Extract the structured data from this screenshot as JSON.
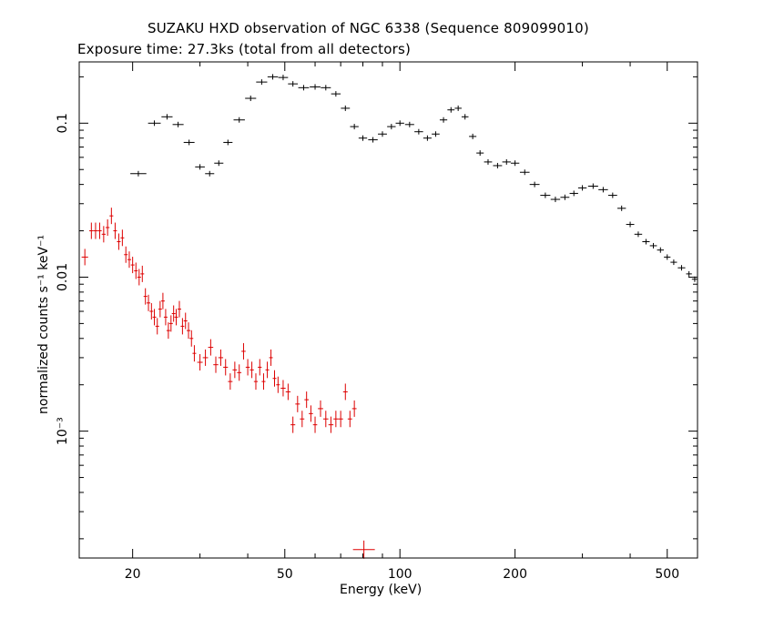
{
  "title": "SUZAKU HXD observation of NGC 6338 (Sequence 809099010)",
  "subtitle": "Exposure time: 27.3ks (total from all detectors)",
  "chart_data": {
    "type": "scatter",
    "xlabel": "Energy (keV)",
    "ylabel": "normalized counts s⁻¹ keV⁻¹",
    "xscale": "log",
    "yscale": "log",
    "xlim": [
      14.5,
      600
    ],
    "ylim": [
      0.00015,
      0.25
    ],
    "x_ticks": [
      {
        "value": 20,
        "label": "20"
      },
      {
        "value": 50,
        "label": "50"
      },
      {
        "value": 100,
        "label": "100"
      },
      {
        "value": 200,
        "label": "200"
      },
      {
        "value": 500,
        "label": "500"
      }
    ],
    "y_ticks": [
      {
        "value": 0.1,
        "label": "0.1"
      },
      {
        "value": 0.01,
        "label": "0.01"
      },
      {
        "value": 0.001,
        "label": "10⁻³"
      }
    ],
    "grid": false,
    "series": [
      {
        "color": "#000000",
        "points": [
          [
            20.7,
            0.047
          ],
          [
            22.8,
            0.1
          ],
          [
            24.6,
            0.11
          ],
          [
            26.3,
            0.098
          ],
          [
            28.1,
            0.075
          ],
          [
            30.0,
            0.052
          ],
          [
            31.8,
            0.047
          ],
          [
            33.6,
            0.055
          ],
          [
            35.5,
            0.075
          ],
          [
            38.0,
            0.105
          ],
          [
            40.7,
            0.145
          ],
          [
            43.5,
            0.185
          ],
          [
            46.5,
            0.2
          ],
          [
            49.5,
            0.198
          ],
          [
            52.5,
            0.18
          ],
          [
            56.0,
            0.17
          ],
          [
            60.0,
            0.172
          ],
          [
            64.0,
            0.17
          ],
          [
            68.0,
            0.155
          ],
          [
            72.0,
            0.125
          ],
          [
            76.0,
            0.095
          ],
          [
            80.0,
            0.08
          ],
          [
            85.0,
            0.078
          ],
          [
            90.0,
            0.085
          ],
          [
            95.0,
            0.095
          ],
          [
            100.0,
            0.1
          ],
          [
            106.0,
            0.098
          ],
          [
            112.0,
            0.088
          ],
          [
            118.0,
            0.08
          ],
          [
            124.0,
            0.085
          ],
          [
            130.0,
            0.105
          ],
          [
            136.0,
            0.122
          ],
          [
            142.0,
            0.125
          ],
          [
            148.0,
            0.11
          ],
          [
            155.0,
            0.082
          ],
          [
            162.0,
            0.064
          ],
          [
            170.0,
            0.056
          ],
          [
            180.0,
            0.053
          ],
          [
            190.0,
            0.056
          ],
          [
            200.0,
            0.055
          ],
          [
            212.0,
            0.048
          ],
          [
            225.0,
            0.04
          ],
          [
            240.0,
            0.034
          ],
          [
            255.0,
            0.032
          ],
          [
            270.0,
            0.033
          ],
          [
            285.0,
            0.035
          ],
          [
            300.0,
            0.038
          ],
          [
            320.0,
            0.039
          ],
          [
            340.0,
            0.037
          ],
          [
            360.0,
            0.034
          ],
          [
            380.0,
            0.028
          ],
          [
            400.0,
            0.022
          ],
          [
            420.0,
            0.019
          ],
          [
            440.0,
            0.017
          ],
          [
            460.0,
            0.016
          ],
          [
            480.0,
            0.015
          ],
          [
            500.0,
            0.0135
          ],
          [
            520.0,
            0.0125
          ],
          [
            545.0,
            0.0115
          ],
          [
            570.0,
            0.0105
          ],
          [
            590.0,
            0.0097
          ]
        ]
      },
      {
        "color": "#dd0000",
        "points": [
          [
            15.0,
            0.0135
          ],
          [
            15.6,
            0.02
          ],
          [
            16.0,
            0.02
          ],
          [
            16.4,
            0.02
          ],
          [
            16.8,
            0.019
          ],
          [
            17.2,
            0.021
          ],
          [
            17.6,
            0.025
          ],
          [
            18.0,
            0.02
          ],
          [
            18.4,
            0.017
          ],
          [
            18.8,
            0.018
          ],
          [
            19.2,
            0.014
          ],
          [
            19.6,
            0.013
          ],
          [
            20.0,
            0.012
          ],
          [
            20.4,
            0.011
          ],
          [
            20.8,
            0.01
          ],
          [
            21.2,
            0.0105
          ],
          [
            21.6,
            0.0075
          ],
          [
            22.0,
            0.0068
          ],
          [
            22.4,
            0.006
          ],
          [
            22.8,
            0.0055
          ],
          [
            23.2,
            0.0048
          ],
          [
            23.6,
            0.0062
          ],
          [
            24.0,
            0.007
          ],
          [
            24.4,
            0.0055
          ],
          [
            24.8,
            0.0045
          ],
          [
            25.2,
            0.005
          ],
          [
            25.6,
            0.0058
          ],
          [
            26.0,
            0.0055
          ],
          [
            26.5,
            0.0062
          ],
          [
            27.0,
            0.0048
          ],
          [
            27.5,
            0.0052
          ],
          [
            28.0,
            0.0045
          ],
          [
            28.5,
            0.004
          ],
          [
            29.0,
            0.0032
          ],
          [
            30.0,
            0.0028
          ],
          [
            31.0,
            0.003
          ],
          [
            32.0,
            0.0035
          ],
          [
            33.0,
            0.0027
          ],
          [
            34.0,
            0.003
          ],
          [
            35.0,
            0.0026
          ],
          [
            36.0,
            0.0021
          ],
          [
            37.0,
            0.0025
          ],
          [
            38.0,
            0.0024
          ],
          [
            39.0,
            0.0033
          ],
          [
            40.0,
            0.0026
          ],
          [
            41.0,
            0.0025
          ],
          [
            42.0,
            0.0021
          ],
          [
            43.0,
            0.0026
          ],
          [
            44.0,
            0.0021
          ],
          [
            45.0,
            0.0025
          ],
          [
            46.0,
            0.003
          ],
          [
            47.0,
            0.0022
          ],
          [
            48.0,
            0.002
          ],
          [
            49.5,
            0.0019
          ],
          [
            51.0,
            0.0018
          ],
          [
            52.5,
            0.0011
          ],
          [
            54.0,
            0.0015
          ],
          [
            55.5,
            0.0012
          ],
          [
            57.0,
            0.0016
          ],
          [
            58.5,
            0.0013
          ],
          [
            60.0,
            0.0011
          ],
          [
            62.0,
            0.0014
          ],
          [
            64.0,
            0.0012
          ],
          [
            66.0,
            0.0011
          ],
          [
            68.0,
            0.0012
          ],
          [
            70.0,
            0.0012
          ],
          [
            72.0,
            0.0018
          ],
          [
            74.0,
            0.0012
          ],
          [
            76.0,
            0.0014
          ],
          [
            80.5,
            0.00017
          ]
        ]
      }
    ]
  }
}
